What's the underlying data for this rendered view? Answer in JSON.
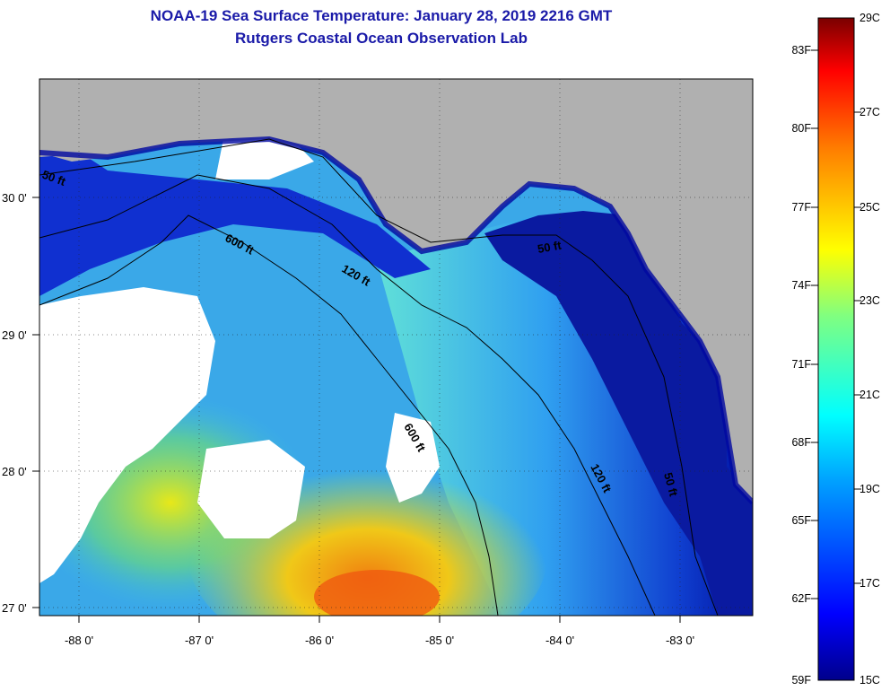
{
  "title": "NOAA-19 Sea Surface Temperature:  January 28, 2019 2216 GMT",
  "subtitle": "Rutgers Coastal Ocean Observation Lab",
  "colors": {
    "land": "#b0b0b0",
    "cloud": "#ffffff",
    "deep_blue": "#00008b",
    "cyan": "#10d8e8",
    "yellow": "#e8e818",
    "orange": "#f07010",
    "dark_red": "#7a0000"
  },
  "map": {
    "x_ticks": [
      "-88 0'",
      "-87 0'",
      "-86 0'",
      "-85 0'",
      "-84 0'",
      "-83 0'"
    ],
    "y_ticks": [
      "30 0'",
      "29 0'",
      "28 0'",
      "27 0'"
    ],
    "contour_labels": [
      "50 ft",
      "600 ft",
      "120 ft",
      "50 ft",
      "600 ft",
      "120 ft",
      "50 ft"
    ]
  },
  "colorbar": {
    "fahrenheit": [
      "83F",
      "80F",
      "77F",
      "74F",
      "71F",
      "68F",
      "65F",
      "62F",
      "59F"
    ],
    "celsius": [
      "29C",
      "27C",
      "25C",
      "23C",
      "21C",
      "19C",
      "17C",
      "15C"
    ]
  }
}
